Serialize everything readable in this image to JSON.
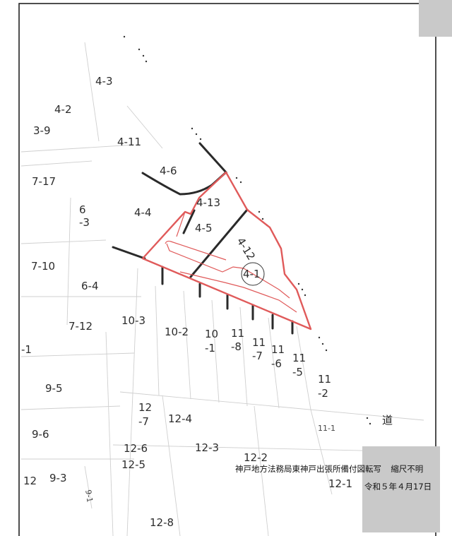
{
  "parcels": [
    {
      "id": "p-4-3",
      "label": "4-3"
    },
    {
      "id": "p-4-2",
      "label": "4-2"
    },
    {
      "id": "p-3-9",
      "label": "3-9"
    },
    {
      "id": "p-4-11",
      "label": "4-11"
    },
    {
      "id": "p-4-6",
      "label": "4-6"
    },
    {
      "id": "p-7-17",
      "label": "7-17"
    },
    {
      "id": "p-4-13",
      "label": "4-13"
    },
    {
      "id": "p-6",
      "label": "6"
    },
    {
      "id": "p-3",
      "label": "-3"
    },
    {
      "id": "p-4-4",
      "label": "4-4"
    },
    {
      "id": "p-4-5",
      "label": "4-5"
    },
    {
      "id": "p-4-12",
      "label": "4-12"
    },
    {
      "id": "p-7-10",
      "label": "7-10"
    },
    {
      "id": "p-4-1",
      "label": "4-1"
    },
    {
      "id": "p-6-4",
      "label": "6-4"
    },
    {
      "id": "p-10-3",
      "label": "10-3"
    },
    {
      "id": "p-7-12",
      "label": "7-12"
    },
    {
      "id": "p-10-2",
      "label": "10-2"
    },
    {
      "id": "p-10a",
      "label": "10"
    },
    {
      "id": "p-10b",
      "label": "-1"
    },
    {
      "id": "p-11-8a",
      "label": "11"
    },
    {
      "id": "p-11-8b",
      "label": "-8"
    },
    {
      "id": "p-11-7a",
      "label": "11"
    },
    {
      "id": "p-11-7b",
      "label": "-7"
    },
    {
      "id": "p-11-6a",
      "label": "11"
    },
    {
      "id": "p-11-6b",
      "label": "-6"
    },
    {
      "id": "p-11-5a",
      "label": "11"
    },
    {
      "id": "p-11-5b",
      "label": "-5"
    },
    {
      "id": "p-11-2a",
      "label": "11"
    },
    {
      "id": "p-11-2b",
      "label": "-2"
    },
    {
      "id": "p-1",
      "label": "-1"
    },
    {
      "id": "p-9-5",
      "label": "9-5"
    },
    {
      "id": "p-12-7a",
      "label": "12"
    },
    {
      "id": "p-12-7b",
      "label": "-7"
    },
    {
      "id": "p-12-4",
      "label": "12-4"
    },
    {
      "id": "p-9-6",
      "label": "9-6"
    },
    {
      "id": "p-12-6",
      "label": "12-6"
    },
    {
      "id": "p-12-3",
      "label": "12-3"
    },
    {
      "id": "p-12-2",
      "label": "12-2"
    },
    {
      "id": "p-12-5",
      "label": "12-5"
    },
    {
      "id": "p-12",
      "label": "12"
    },
    {
      "id": "p-9-3",
      "label": "9-3"
    },
    {
      "id": "p-12-1",
      "label": "12-1"
    },
    {
      "id": "p-12-8",
      "label": "12-8"
    },
    {
      "id": "p-9-1",
      "label": "9-1"
    },
    {
      "id": "p-11-1",
      "label": "11-1"
    }
  ],
  "road_label": "道",
  "footer": {
    "source": "神戸地方法務局東神戸出張所備付図転写",
    "scale": "縮尺不明",
    "date": "令和５年４月17日"
  },
  "colors": {
    "boundary": "#e05a5a",
    "ink": "#2a2a2a",
    "faint": "#c8c8c8",
    "mask": "#c9c9c9"
  }
}
